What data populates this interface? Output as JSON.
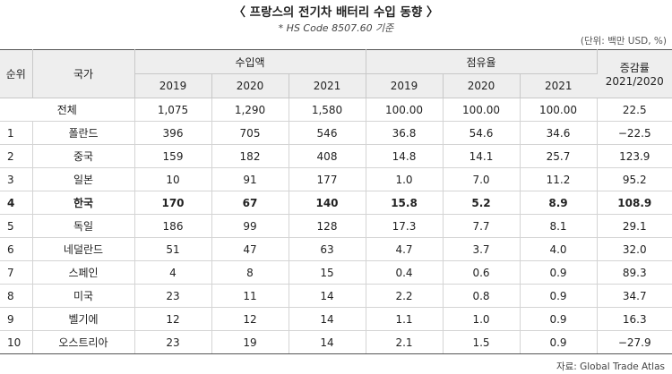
{
  "title": "〈 프랑스의 전기차 배터리 수입 동향 〉",
  "note": "* HS Code 8507.60 기준",
  "unit": "(단위: 백만 USD, %)",
  "headers": {
    "rank": "순위",
    "country": "국가",
    "import_amount": "수입액",
    "share": "점유율",
    "growth_line1": "증감률",
    "growth_line2": "2021/2020",
    "years": [
      "2019",
      "2020",
      "2021"
    ]
  },
  "total_row": {
    "label": "전체",
    "values": [
      "1,075",
      "1,290",
      "1,580",
      "100.00",
      "100.00",
      "100.00",
      "22.5"
    ]
  },
  "rows": [
    {
      "rank": "1",
      "country": "폴란드",
      "values": [
        "396",
        "705",
        "546",
        "36.8",
        "54.6",
        "34.6",
        "−22.5"
      ],
      "highlight": false
    },
    {
      "rank": "2",
      "country": "중국",
      "values": [
        "159",
        "182",
        "408",
        "14.8",
        "14.1",
        "25.7",
        "123.9"
      ],
      "highlight": false
    },
    {
      "rank": "3",
      "country": "일본",
      "values": [
        "10",
        "91",
        "177",
        "1.0",
        "7.0",
        "11.2",
        "95.2"
      ],
      "highlight": false
    },
    {
      "rank": "4",
      "country": "한국",
      "values": [
        "170",
        "67",
        "140",
        "15.8",
        "5.2",
        "8.9",
        "108.9"
      ],
      "highlight": true
    },
    {
      "rank": "5",
      "country": "독일",
      "values": [
        "186",
        "99",
        "128",
        "17.3",
        "7.7",
        "8.1",
        "29.1"
      ],
      "highlight": false
    },
    {
      "rank": "6",
      "country": "네덜란드",
      "values": [
        "51",
        "47",
        "63",
        "4.7",
        "3.7",
        "4.0",
        "32.0"
      ],
      "highlight": false
    },
    {
      "rank": "7",
      "country": "스페인",
      "values": [
        "4",
        "8",
        "15",
        "0.4",
        "0.6",
        "0.9",
        "89.3"
      ],
      "highlight": false
    },
    {
      "rank": "8",
      "country": "미국",
      "values": [
        "23",
        "11",
        "14",
        "2.2",
        "0.8",
        "0.9",
        "34.7"
      ],
      "highlight": false
    },
    {
      "rank": "9",
      "country": "벨기에",
      "values": [
        "12",
        "12",
        "14",
        "1.1",
        "1.0",
        "0.9",
        "16.3"
      ],
      "highlight": false
    },
    {
      "rank": "10",
      "country": "오스트리아",
      "values": [
        "23",
        "19",
        "14",
        "2.1",
        "1.5",
        "0.9",
        "−27.9"
      ],
      "highlight": false
    }
  ],
  "source": "자료: Global Trade Atlas"
}
